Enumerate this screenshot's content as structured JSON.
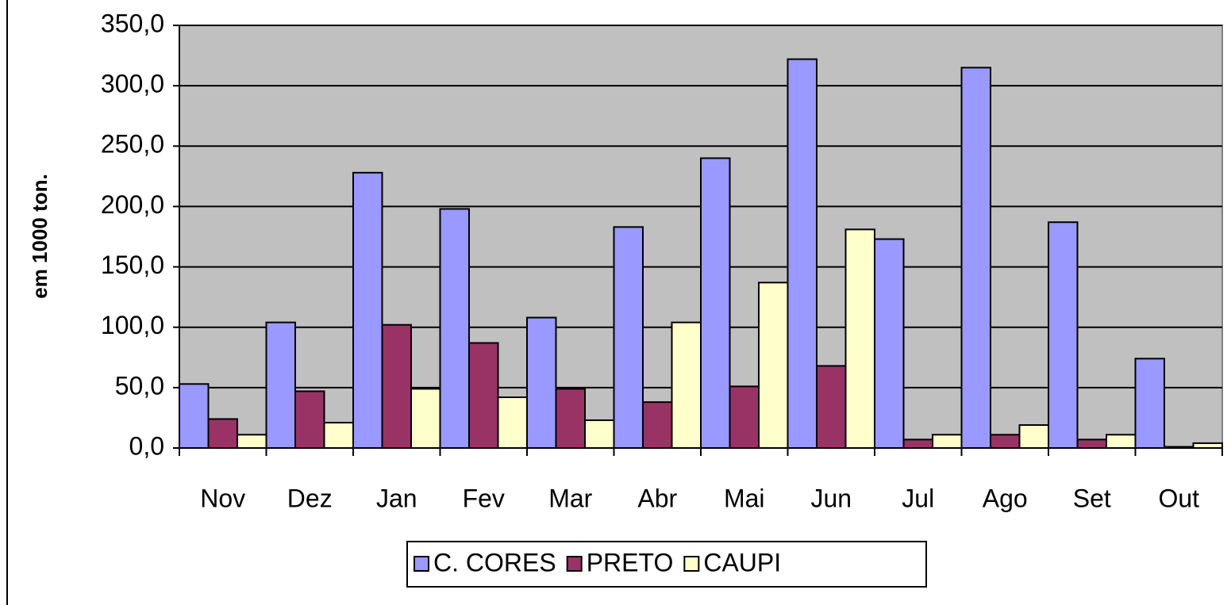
{
  "chart_data": {
    "type": "bar",
    "y_label": "em 1000 ton.",
    "categories": [
      "Nov",
      "Dez",
      "Jan",
      "Fev",
      "Mar",
      "Abr",
      "Mai",
      "Jun",
      "Jul",
      "Ago",
      "Set",
      "Out"
    ],
    "series": [
      {
        "name": "C. CORES",
        "color": "#9999ff",
        "values": [
          53,
          104,
          228,
          198,
          108,
          183,
          240,
          322,
          173,
          315,
          187,
          74
        ]
      },
      {
        "name": "PRETO",
        "color": "#993366",
        "values": [
          24,
          47,
          102,
          87,
          49,
          38,
          51,
          68,
          7,
          11,
          7,
          1
        ]
      },
      {
        "name": "CAUPI",
        "color": "#ffffcc",
        "values": [
          11,
          21,
          49,
          42,
          23,
          104,
          137,
          181,
          11,
          19,
          11,
          4
        ]
      }
    ],
    "ylim": [
      0,
      350
    ],
    "yticks": [
      {
        "value": 0,
        "label": "0,0"
      },
      {
        "value": 50,
        "label": "50,0"
      },
      {
        "value": 100,
        "label": "100,0"
      },
      {
        "value": 150,
        "label": "150,0"
      },
      {
        "value": 200,
        "label": "200,0"
      },
      {
        "value": 250,
        "label": "250,0"
      },
      {
        "value": 300,
        "label": "300,0"
      },
      {
        "value": 350,
        "label": "350,0"
      }
    ],
    "grid": true,
    "legend": "bottom"
  }
}
